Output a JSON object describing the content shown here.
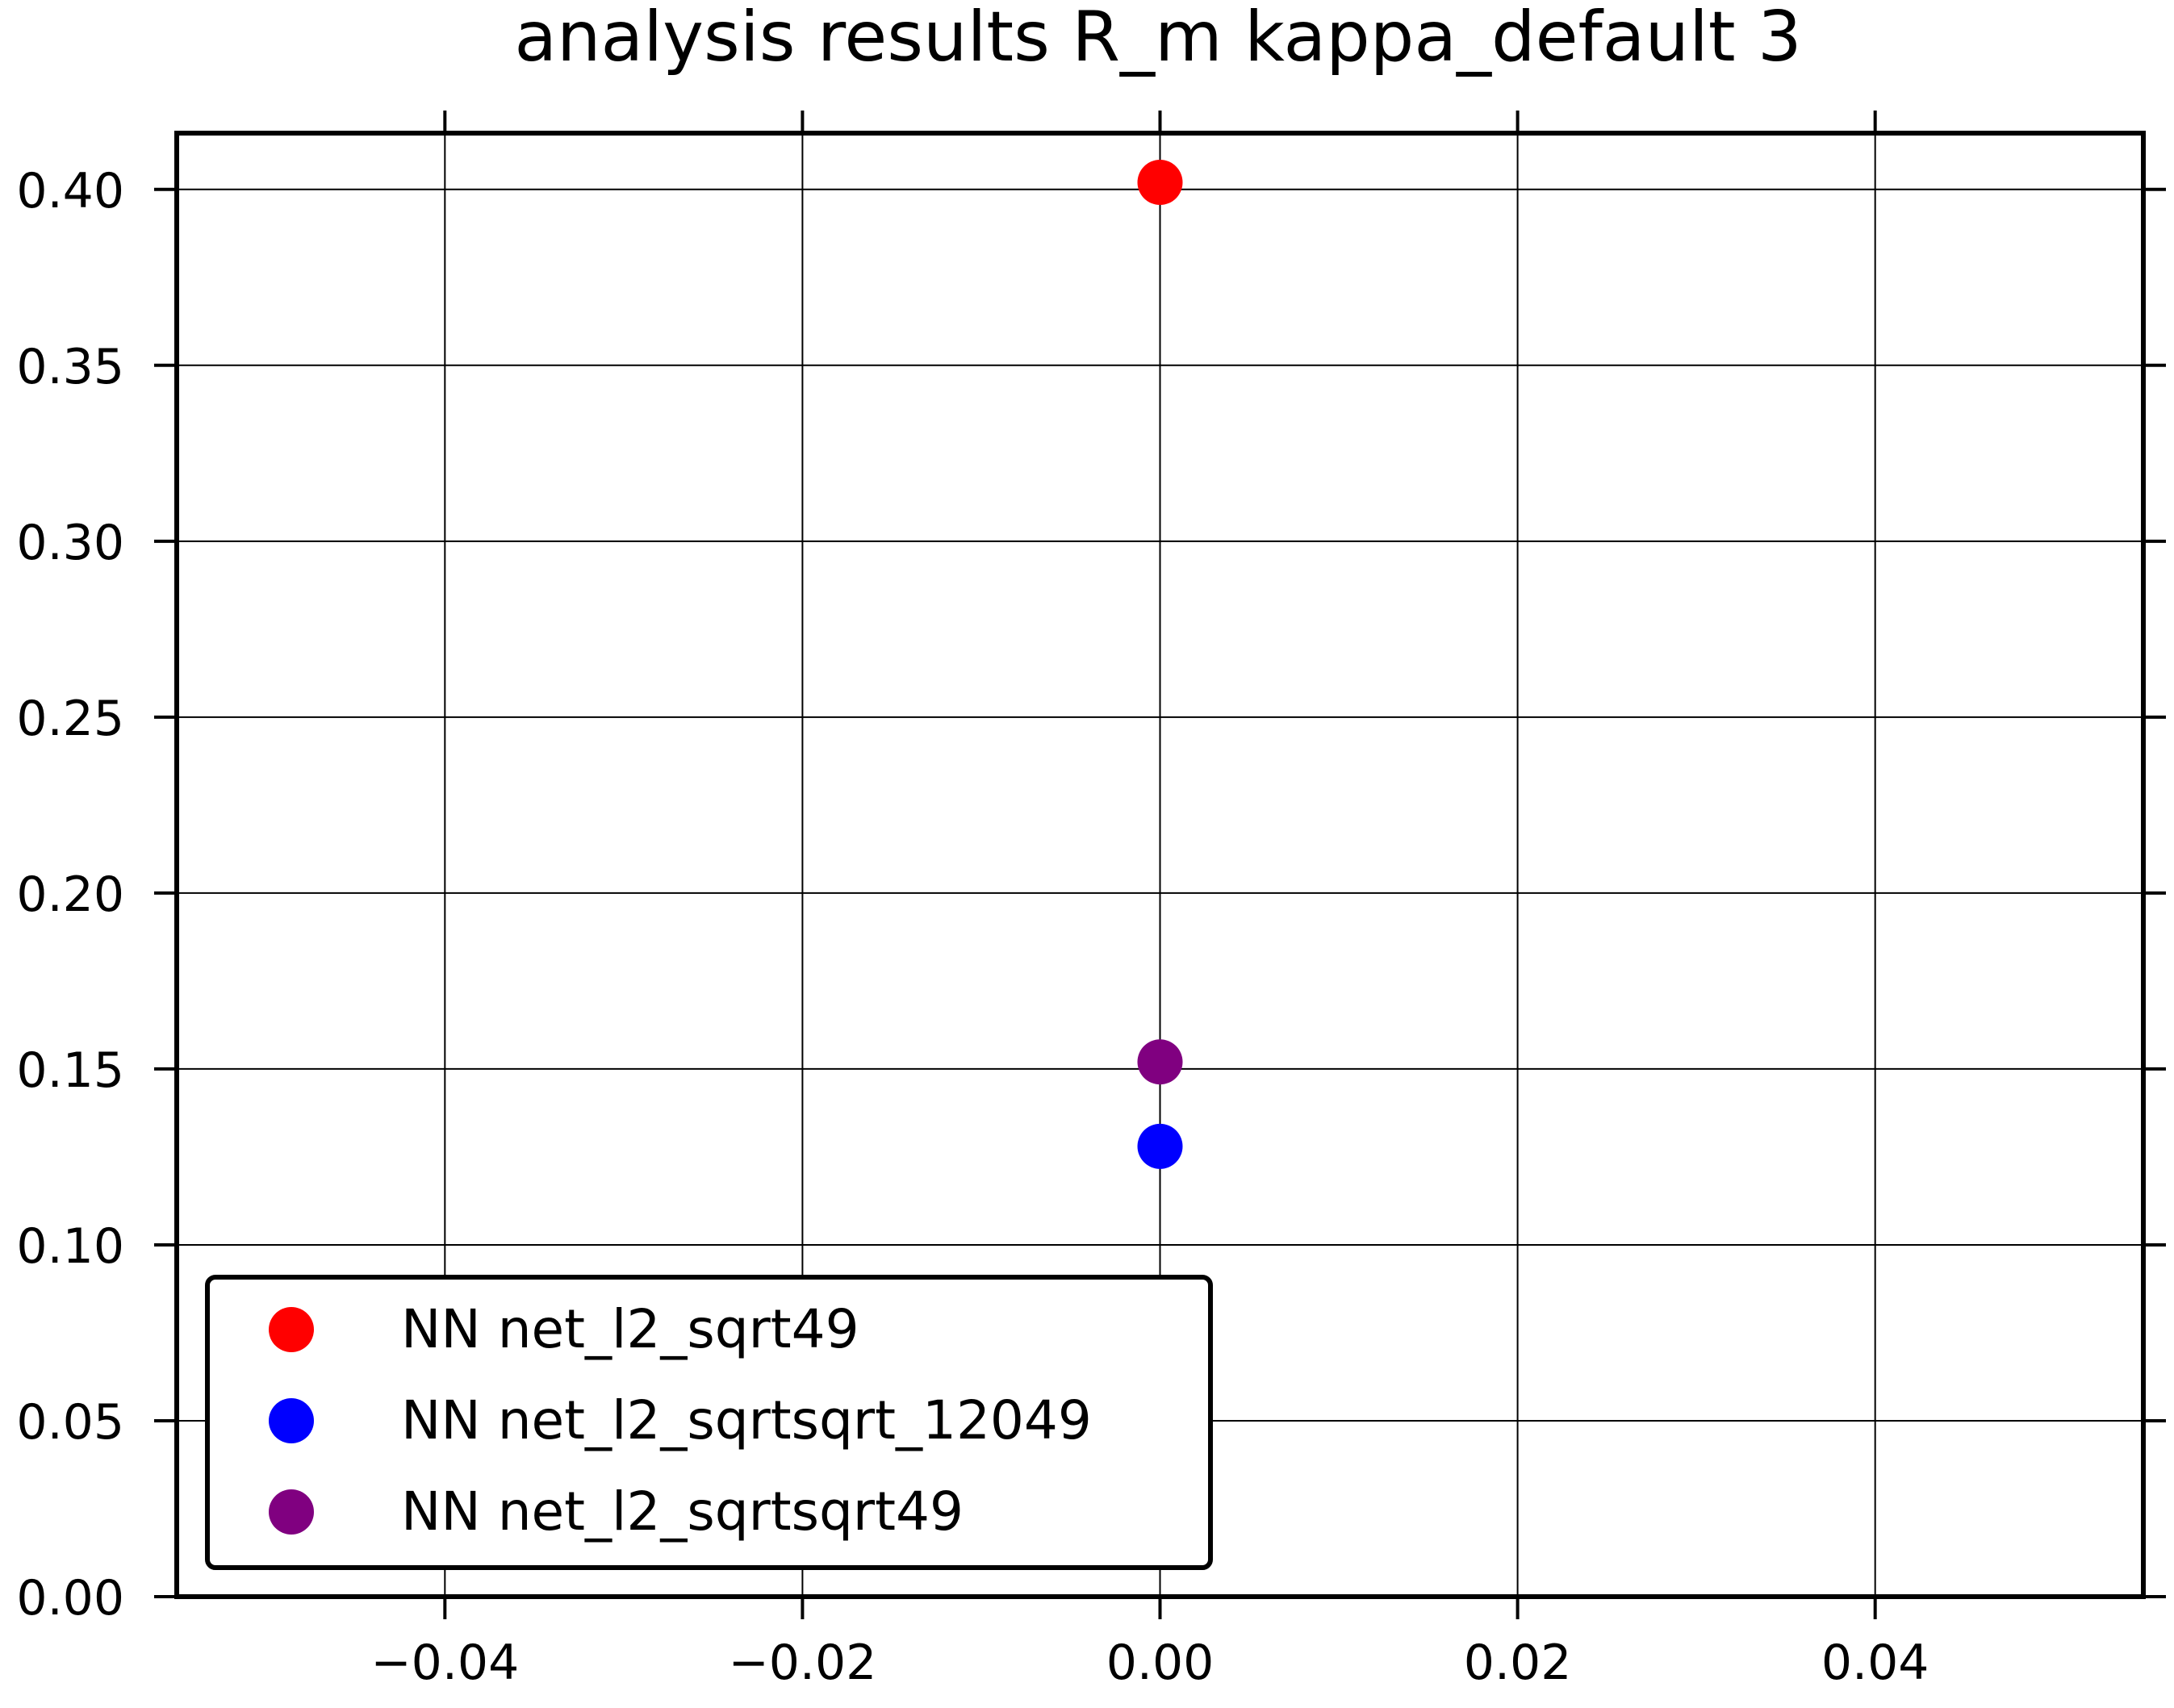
{
  "chart_data": {
    "type": "scatter",
    "title": "analysis results R_m  kappa_default 3",
    "xlabel": "",
    "ylabel": "",
    "xlim": [
      -0.055,
      0.055
    ],
    "ylim": [
      0.0,
      0.416
    ],
    "x_ticks": [
      -0.04,
      -0.02,
      0.0,
      0.02,
      0.04
    ],
    "x_tick_labels": [
      "−0.04",
      "−0.02",
      "0.00",
      "0.02",
      "0.04"
    ],
    "y_ticks": [
      0.0,
      0.05,
      0.1,
      0.15,
      0.2,
      0.25,
      0.3,
      0.35,
      0.4
    ],
    "y_tick_labels": [
      "0.00",
      "0.05",
      "0.10",
      "0.15",
      "0.20",
      "0.25",
      "0.30",
      "0.35",
      "0.40"
    ],
    "grid": true,
    "legend_position": "lower-left",
    "series": [
      {
        "name": "NN net_l2_sqrt49",
        "color": "#ff0000",
        "x": [
          0.0
        ],
        "y": [
          0.402
        ]
      },
      {
        "name": "NN net_l2_sqrtsqrt_12049",
        "color": "#0000ff",
        "x": [
          0.0
        ],
        "y": [
          0.128
        ]
      },
      {
        "name": "NN net_l2_sqrtsqrt49",
        "color": "#800080",
        "x": [
          0.0
        ],
        "y": [
          0.152
        ]
      }
    ]
  }
}
